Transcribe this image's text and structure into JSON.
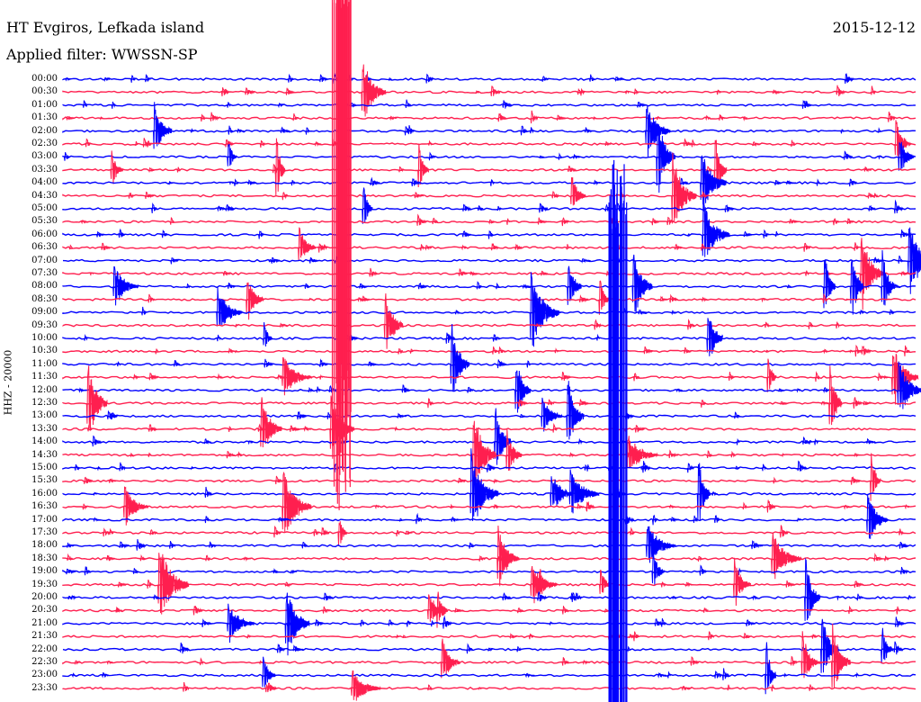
{
  "header": {
    "station": "HT Evgiros, Lefkada island",
    "filter": "Applied filter: WWSSN-SP",
    "date": "2015-12-12"
  },
  "chart_data": {
    "type": "line",
    "title": "HT Evgiros, Lefkada island",
    "subtitle": "Applied filter: WWSSN-SP",
    "date": "2015-12-12",
    "ylabel": "HHZ - 20000",
    "rows": [
      "00:00",
      "00:30",
      "01:00",
      "01:30",
      "02:00",
      "02:30",
      "03:00",
      "03:30",
      "04:00",
      "04:30",
      "05:00",
      "05:30",
      "06:00",
      "06:30",
      "07:00",
      "07:30",
      "08:00",
      "08:30",
      "09:00",
      "09:30",
      "10:00",
      "10:30",
      "11:00",
      "11:30",
      "12:00",
      "12:30",
      "13:00",
      "13:30",
      "14:00",
      "14:30",
      "15:00",
      "15:30",
      "16:00",
      "16:30",
      "17:00",
      "17:30",
      "18:00",
      "18:30",
      "19:00",
      "19:30",
      "20:00",
      "20:30",
      "21:00",
      "21:30",
      "22:00",
      "22:30",
      "23:00",
      "23:30"
    ],
    "colors": {
      "even_rows": "#0000ff",
      "odd_rows": "#ff1f4f"
    },
    "big_events": [
      {
        "row": 0,
        "minute": 9.8,
        "amplitude": 120,
        "color": "#ff1f4f"
      },
      {
        "row": 20,
        "minute": 19.5,
        "amplitude": 200,
        "color": "#0000ff"
      }
    ]
  }
}
